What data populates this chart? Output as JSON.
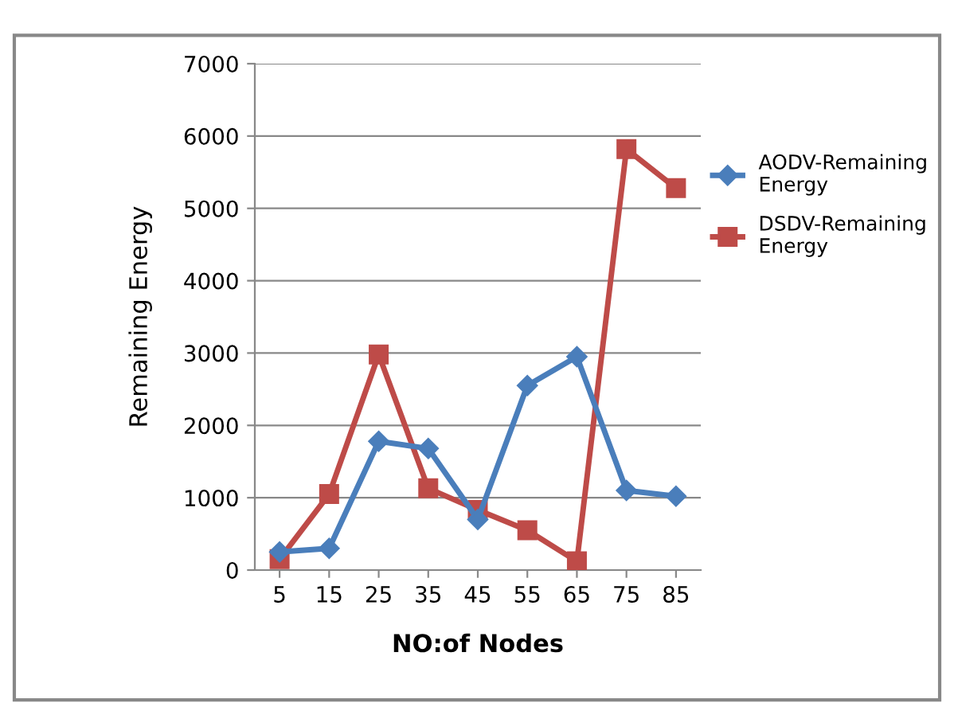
{
  "chart_data": {
    "type": "line",
    "xlabel": "NO:of Nodes",
    "ylabel": "Remaining Energy",
    "categories": [
      "5",
      "15",
      "25",
      "35",
      "45",
      "55",
      "65",
      "75",
      "85"
    ],
    "series": [
      {
        "name": "AODV-Remaining Energy",
        "color": "#4a7ebb",
        "marker": "diamond",
        "values": [
          250,
          300,
          1780,
          1680,
          700,
          2550,
          2950,
          1100,
          1020
        ]
      },
      {
        "name": "DSDV-Remaining Energy",
        "color": "#be4b48",
        "marker": "square",
        "values": [
          150,
          1050,
          2980,
          1130,
          830,
          550,
          120,
          5820,
          5280
        ]
      }
    ],
    "ylim": [
      0,
      7000
    ],
    "yticks": [
      0,
      1000,
      2000,
      3000,
      4000,
      5000,
      6000,
      7000
    ],
    "grid": "y",
    "legend": "right"
  }
}
